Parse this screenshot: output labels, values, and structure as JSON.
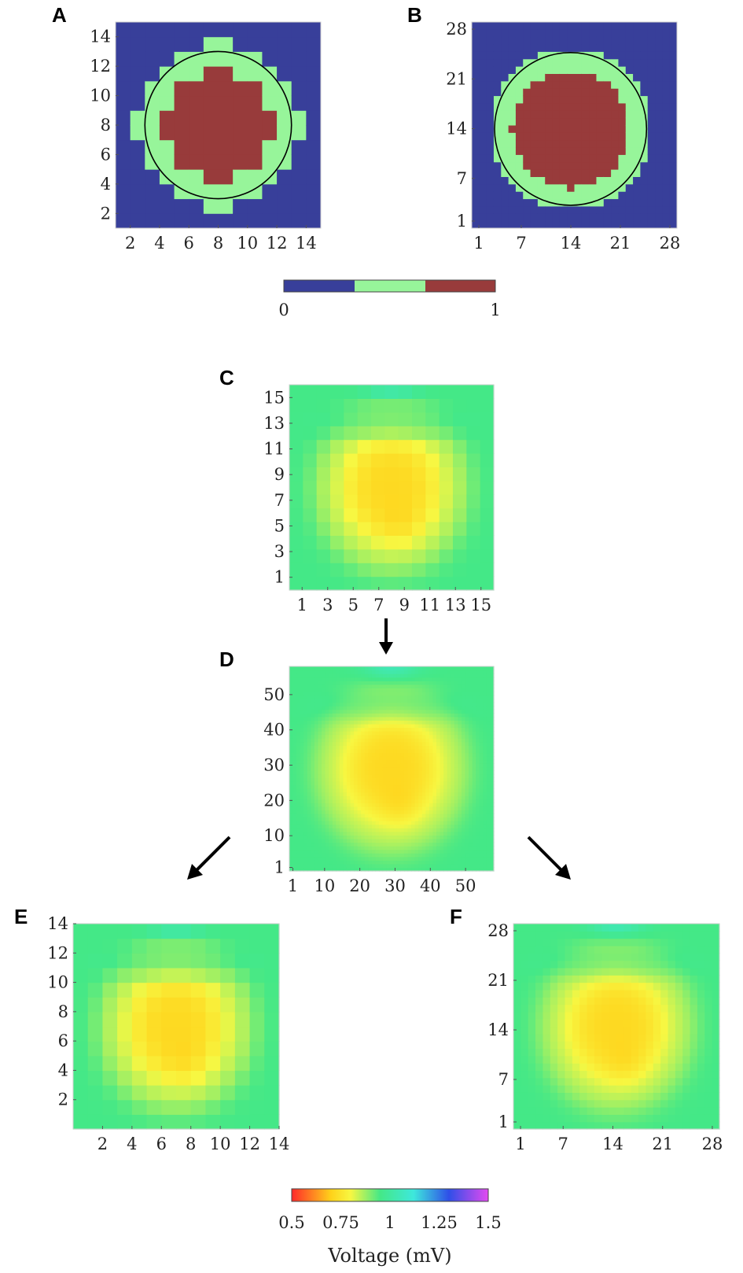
{
  "colors": {
    "mask_outside": "#383f9a",
    "mask_boundary": "#97f59a",
    "mask_inside": "#983b3b",
    "voltage_scale": [
      "#ff2a2a",
      "#ffd21a",
      "#f7f742",
      "#44e887",
      "#3ee8dc",
      "#2f4fe8",
      "#e34af0"
    ]
  },
  "chart_data": [
    {
      "panel": "A",
      "type": "heatmap",
      "grid": 14,
      "xticks": [
        "2",
        "4",
        "6",
        "8",
        "10",
        "12",
        "14"
      ],
      "yticks": [
        "2",
        "4",
        "6",
        "8",
        "10",
        "12",
        "14"
      ],
      "xlim": [
        1,
        15
      ],
      "ylim": [
        1,
        15
      ],
      "circle": {
        "cx": 8,
        "cy": 8,
        "r": 5
      },
      "classes": [
        "0 (outside)",
        "0.5 (boundary)",
        "1 (inside)"
      ]
    },
    {
      "panel": "B",
      "type": "heatmap",
      "grid": 28,
      "xticks": [
        "1",
        "7",
        "14",
        "21",
        "28"
      ],
      "yticks": [
        "1",
        "7",
        "14",
        "21",
        "28"
      ],
      "xlim": [
        1,
        28
      ],
      "ylim": [
        1,
        28
      ],
      "circle": {
        "cx": 14,
        "cy": 14,
        "r": 10
      },
      "classes": [
        "0 (outside)",
        "0.5 (boundary)",
        "1 (inside)"
      ]
    },
    {
      "panel": "C",
      "type": "heatmap",
      "grid": 15,
      "xticks": [
        "1",
        "3",
        "5",
        "7",
        "9",
        "11",
        "13",
        "15"
      ],
      "yticks": [
        "1",
        "3",
        "5",
        "7",
        "9",
        "11",
        "13",
        "15"
      ],
      "value_range_mV": [
        0.5,
        1.5
      ]
    },
    {
      "panel": "D",
      "type": "heatmap",
      "grid": 57,
      "xticks": [
        "1",
        "10",
        "20",
        "30",
        "40",
        "50"
      ],
      "yticks": [
        "1",
        "10",
        "20",
        "30",
        "40",
        "50"
      ],
      "value_range_mV": [
        0.5,
        1.5
      ]
    },
    {
      "panel": "E",
      "type": "heatmap",
      "grid": 14,
      "xticks": [
        "2",
        "4",
        "6",
        "8",
        "10",
        "12",
        "14"
      ],
      "yticks": [
        "2",
        "4",
        "6",
        "8",
        "10",
        "12",
        "14"
      ],
      "value_range_mV": [
        0.5,
        1.5
      ]
    },
    {
      "panel": "F",
      "type": "heatmap",
      "grid": 28,
      "xticks": [
        "1",
        "7",
        "14",
        "21",
        "28"
      ],
      "yticks": [
        "1",
        "7",
        "14",
        "21",
        "28"
      ],
      "value_range_mV": [
        0.5,
        1.5
      ]
    }
  ],
  "colorbars": {
    "mask": {
      "min_label": "0",
      "max_label": "1",
      "segments": 3
    },
    "voltage": {
      "ticks": [
        "0.5",
        "0.75",
        "1",
        "1.25",
        "1.5"
      ],
      "label": "Voltage (mV)",
      "range": [
        0.5,
        1.5
      ]
    }
  }
}
